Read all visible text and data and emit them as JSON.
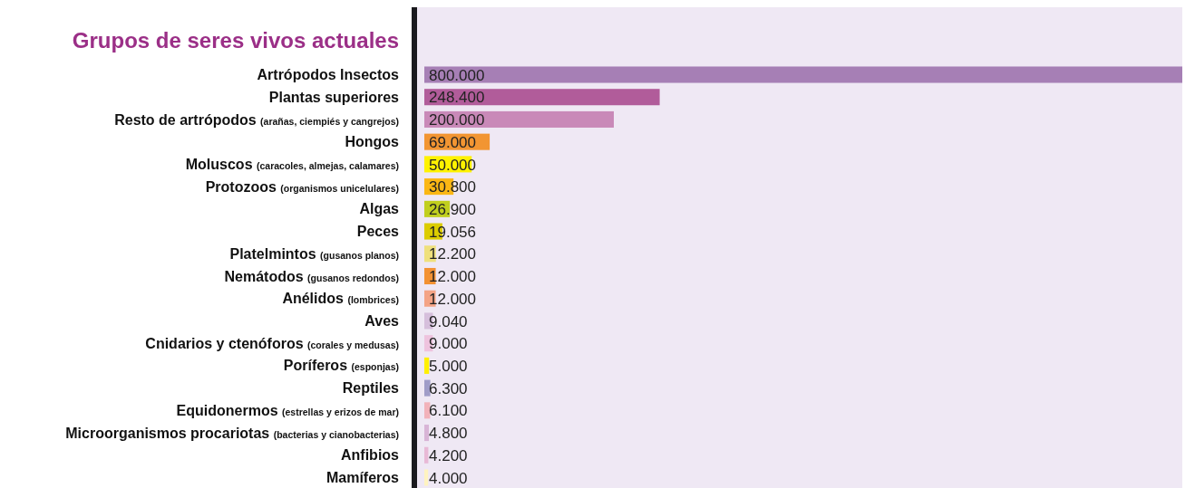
{
  "chart_data": {
    "type": "bar",
    "orientation": "horizontal",
    "title": "Grupos de seres vivos actuales",
    "categories": [
      "Artrópodos Insectos",
      "Plantas superiores",
      "Resto de artrópodos (arañas, ciempiés y cangrejos)",
      "Hongos",
      "Moluscos (caracoles, almejas, calamares)",
      "Protozoos (organismos unicelulares)",
      "Algas",
      "Peces",
      "Platelmintos (gusanos planos)",
      "Nemátodos (gusanos redondos)",
      "Anélidos (lombrices)",
      "Aves",
      "Cnidarios y ctenóforos (corales y medusas)",
      "Poríferos (esponjas)",
      "Reptiles",
      "Equidonermos (estrellas y erizos de mar)",
      "Microorganismos procariotas (bacterias y cianobacterias)",
      "Anfibios",
      "Mamíferos"
    ],
    "values": [
      800000,
      248400,
      200000,
      69000,
      50000,
      30800,
      26900,
      19056,
      12200,
      12000,
      12000,
      9040,
      9000,
      5000,
      6300,
      6100,
      4800,
      4200,
      4000
    ],
    "value_labels": [
      "800.000",
      "248.400",
      "200.000",
      "69.000",
      "50.000",
      "30.800",
      "26.900",
      "19.056",
      "12.200",
      "12.000",
      "12.000",
      "9.040",
      "9.000",
      "5.000",
      "6.300",
      "6.100",
      "4.800",
      "4.200",
      "4.000"
    ],
    "colors": [
      "#a67fb5",
      "#b15c9a",
      "#c989b8",
      "#f29532",
      "#fff200",
      "#fbb714",
      "#c1cf1e",
      "#dccc00",
      "#efe07d",
      "#f39132",
      "#f4a385",
      "#d6bfdc",
      "#eec3de",
      "#fff000",
      "#a09cc8",
      "#f2b2ba",
      "#d8b4d6",
      "#e8b9d6",
      "#fff3c0"
    ],
    "tick_labels": "y"
  }
}
